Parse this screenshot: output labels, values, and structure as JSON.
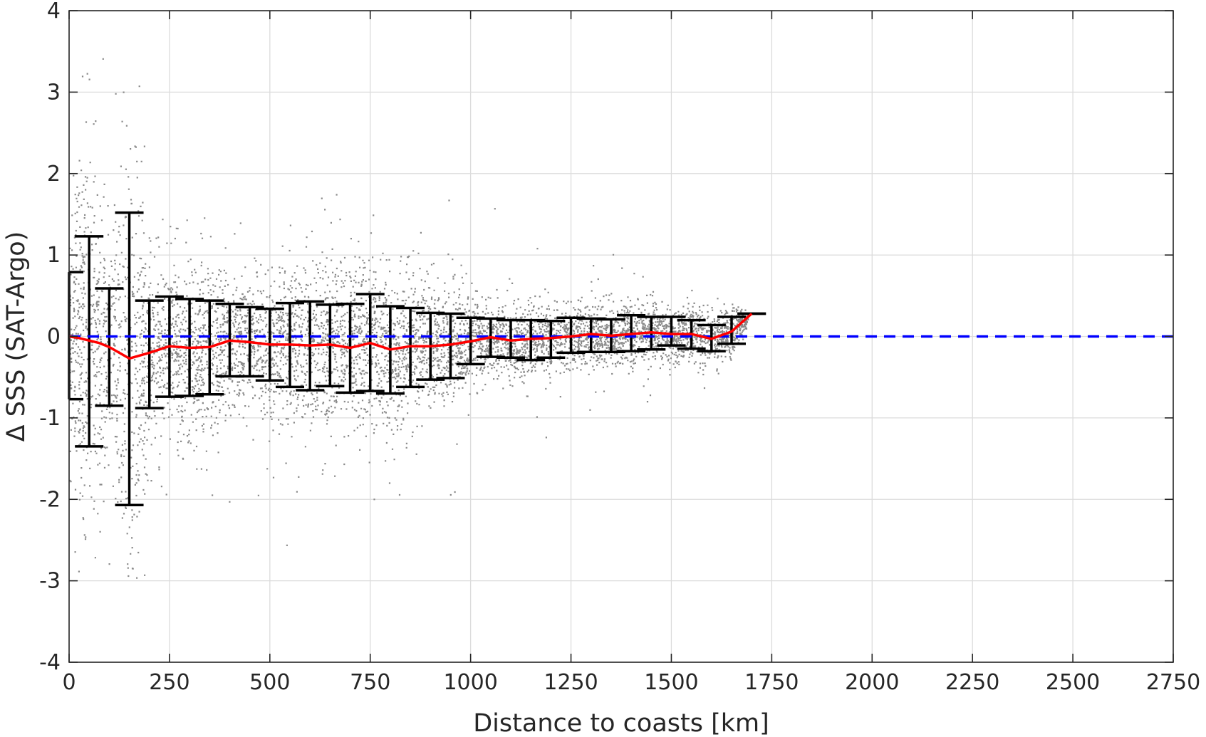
{
  "chart_data": {
    "type": "scatter",
    "title": "",
    "xlabel": "Distance to coasts [km]",
    "ylabel": "Δ SSS (SAT-Argo)",
    "xlim": [
      0,
      2750
    ],
    "ylim": [
      -4,
      4
    ],
    "xticks": [
      0,
      250,
      500,
      750,
      1000,
      1250,
      1500,
      1750,
      2000,
      2250,
      2500,
      2750
    ],
    "xtick_labels": [
      "0",
      "250",
      "500",
      "750",
      "1000",
      "1250",
      "1500",
      "1750",
      "2000",
      "2250",
      "2500",
      "2750"
    ],
    "yticks": [
      4,
      3,
      2,
      1,
      0,
      -1,
      -2,
      -3,
      -4
    ],
    "ytick_labels": [
      "4",
      "3",
      "2",
      "1",
      "0",
      "-1",
      "-2",
      "-3",
      "-4"
    ],
    "grid": true,
    "legend": "none",
    "colors": {
      "points": "#8a8a8a",
      "mean": "#ff0000",
      "zero": "#0000ff",
      "errorbars": "#000000",
      "grid": "#dcdcdc",
      "axes": "#262626"
    },
    "scatter_summary": "Dense grey point cloud of individual SAT-Argo SSS differences, spread widest near the coast and narrowing with distance, extending to about 1700 km",
    "series": [
      {
        "role": "mean",
        "style": "red solid line",
        "x": [
          0,
          25,
          75,
          100,
          150,
          200,
          250,
          300,
          350,
          400,
          450,
          500,
          550,
          600,
          650,
          700,
          750,
          800,
          850,
          900,
          950,
          1000,
          1050,
          1100,
          1150,
          1200,
          1250,
          1300,
          1350,
          1400,
          1450,
          1500,
          1550,
          1600,
          1650,
          1700
        ],
        "y": [
          0.0,
          -0.02,
          -0.08,
          -0.13,
          -0.27,
          -0.2,
          -0.12,
          -0.14,
          -0.13,
          -0.05,
          -0.07,
          -0.1,
          -0.1,
          -0.11,
          -0.1,
          -0.14,
          -0.08,
          -0.16,
          -0.12,
          -0.12,
          -0.1,
          -0.06,
          -0.01,
          -0.05,
          -0.03,
          -0.02,
          0.0,
          0.03,
          0.01,
          0.03,
          0.05,
          0.03,
          0.03,
          -0.03,
          0.06,
          0.28
        ]
      },
      {
        "role": "errorbars",
        "style": "black capped vertical bars",
        "x": [
          0,
          50,
          100,
          150,
          200,
          250,
          300,
          350,
          400,
          450,
          500,
          550,
          600,
          650,
          700,
          750,
          800,
          850,
          900,
          950,
          1000,
          1050,
          1100,
          1150,
          1200,
          1250,
          1300,
          1350,
          1400,
          1450,
          1500,
          1550,
          1600,
          1650,
          1700
        ],
        "lower": [
          -0.77,
          -1.35,
          -0.85,
          -2.07,
          -0.88,
          -0.74,
          -0.73,
          -0.71,
          -0.49,
          -0.49,
          -0.54,
          -0.62,
          -0.66,
          -0.61,
          -0.69,
          -0.67,
          -0.7,
          -0.62,
          -0.53,
          -0.51,
          -0.34,
          -0.25,
          -0.26,
          -0.29,
          -0.26,
          -0.2,
          -0.19,
          -0.19,
          -0.18,
          -0.16,
          -0.11,
          -0.15,
          -0.18,
          -0.09,
          0.28
        ],
        "upper": [
          0.79,
          1.23,
          0.59,
          1.52,
          0.44,
          0.49,
          0.46,
          0.44,
          0.4,
          0.36,
          0.34,
          0.41,
          0.43,
          0.39,
          0.4,
          0.52,
          0.37,
          0.35,
          0.29,
          0.28,
          0.23,
          0.22,
          0.2,
          0.2,
          0.19,
          0.23,
          0.22,
          0.21,
          0.26,
          0.24,
          0.24,
          0.2,
          0.14,
          0.24,
          0.28
        ]
      },
      {
        "role": "zero-reference",
        "style": "blue dashed line",
        "x": [
          0,
          2750
        ],
        "y": [
          0,
          0
        ]
      }
    ]
  }
}
